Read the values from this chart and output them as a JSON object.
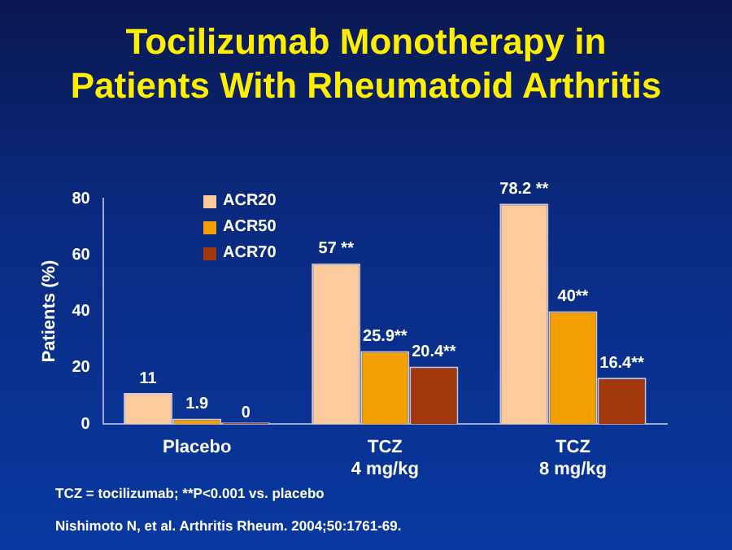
{
  "chart_data": {
    "type": "bar",
    "title": "Tocilizumab Monotherapy in Patients With Rheumatoid Arthritis",
    "ylabel": "Patients (%)",
    "categories": [
      "Placebo",
      "TCZ\n4 mg/kg",
      "TCZ\n8 mg/kg"
    ],
    "series": [
      {
        "name": "ACR20",
        "color": "#fcca9c",
        "values": [
          11,
          57,
          78.2
        ],
        "value_labels": [
          "11",
          "57 **",
          "78.2 **"
        ]
      },
      {
        "name": "ACR50",
        "color": "#f4a000",
        "values": [
          1.9,
          25.9,
          40
        ],
        "value_labels": [
          "1.9",
          "25.9**",
          "40**"
        ]
      },
      {
        "name": "ACR70",
        "color": "#a2380c",
        "values": [
          0,
          20.4,
          16.4
        ],
        "value_labels": [
          "0",
          "20.4**",
          "16.4**"
        ]
      }
    ],
    "ylim": [
      0,
      80
    ],
    "yticks": [
      0,
      20,
      40,
      60,
      80
    ],
    "grid": false,
    "legend": "top left",
    "annotations": [
      "TCZ = tocilizumab; **P<0.001 vs. placebo",
      "Nishimoto N, et al. Arthritis Rheum. 2004;50:1761-69."
    ]
  }
}
